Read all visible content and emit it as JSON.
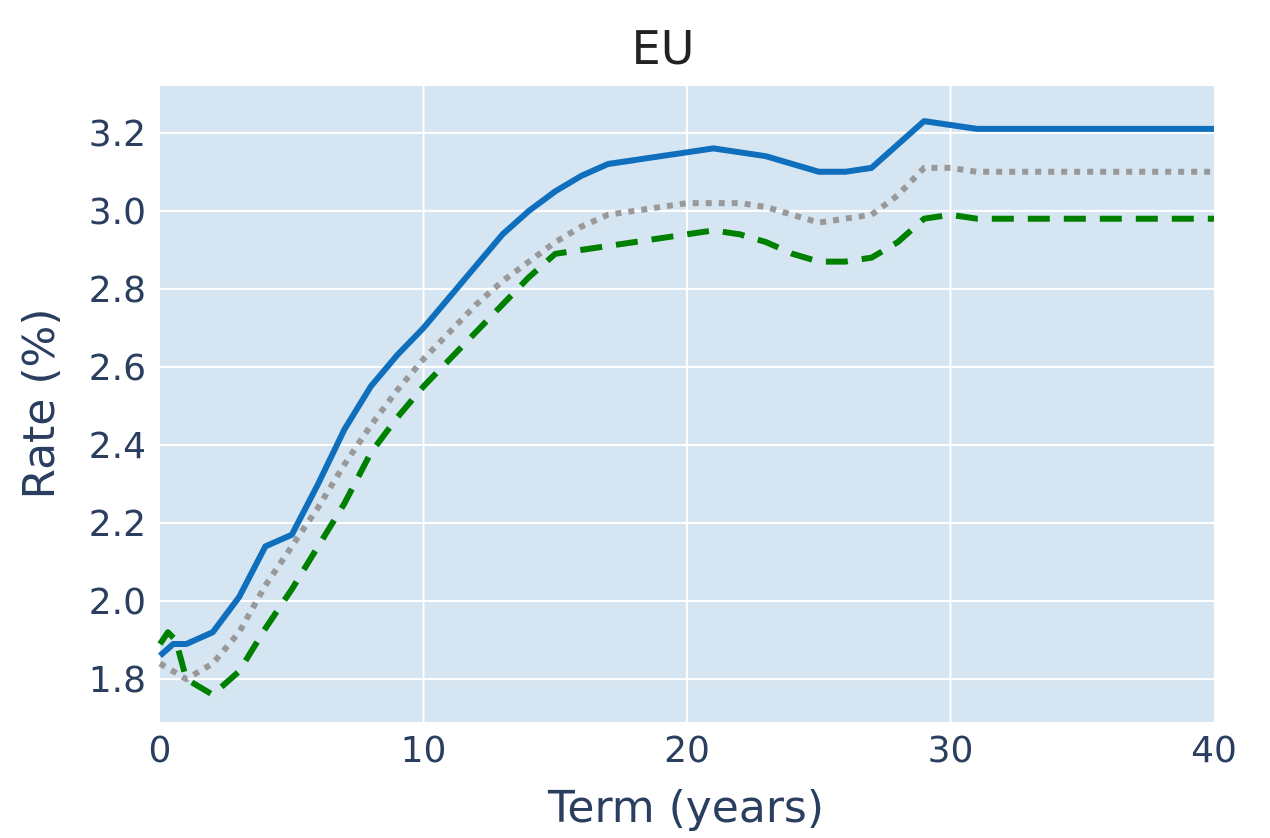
{
  "chart_data": {
    "type": "line",
    "title": "EU",
    "xlabel": "Term (years)",
    "ylabel": "Rate (%)",
    "xlim": [
      0,
      40
    ],
    "ylim": [
      1.69,
      3.32
    ],
    "xticks": [
      0,
      10,
      20,
      30,
      40
    ],
    "yticks": [
      1.8,
      2.0,
      2.2,
      2.4,
      2.6,
      2.8,
      3.0,
      3.2
    ],
    "ytick_labels": [
      "1.8",
      "2.0",
      "2.2",
      "2.4",
      "2.6",
      "2.8",
      "3.0",
      "3.2"
    ],
    "grid": true,
    "legend": "none",
    "background": "#d6e5f2",
    "gridColor": "#ffffff",
    "series": [
      {
        "style": "solid",
        "color": "#0f6fbd",
        "x": [
          0,
          0.5,
          1,
          2,
          3,
          4,
          5,
          6,
          7,
          8,
          9,
          10,
          11,
          12,
          13,
          14,
          15,
          16,
          17,
          18,
          19,
          20,
          21,
          22,
          23,
          24,
          25,
          26,
          27,
          28,
          29,
          30,
          31,
          35,
          40
        ],
        "y": [
          1.86,
          1.89,
          1.89,
          1.92,
          2.01,
          2.14,
          2.17,
          2.3,
          2.44,
          2.55,
          2.63,
          2.7,
          2.78,
          2.86,
          2.94,
          3.0,
          3.05,
          3.09,
          3.12,
          3.13,
          3.14,
          3.15,
          3.16,
          3.15,
          3.14,
          3.12,
          3.1,
          3.1,
          3.11,
          3.17,
          3.23,
          3.22,
          3.21,
          3.21,
          3.21
        ]
      },
      {
        "style": "dotted",
        "color": "#999999",
        "x": [
          0,
          0.5,
          1,
          2,
          3,
          4,
          5,
          6,
          7,
          8,
          9,
          10,
          11,
          12,
          13,
          14,
          15,
          16,
          17,
          18,
          19,
          20,
          21,
          22,
          23,
          24,
          25,
          26,
          27,
          28,
          29,
          30,
          31,
          35,
          40
        ],
        "y": [
          1.84,
          1.82,
          1.8,
          1.84,
          1.92,
          2.04,
          2.14,
          2.24,
          2.35,
          2.45,
          2.54,
          2.62,
          2.69,
          2.76,
          2.82,
          2.87,
          2.92,
          2.96,
          2.99,
          3.0,
          3.01,
          3.02,
          3.02,
          3.02,
          3.01,
          2.99,
          2.97,
          2.98,
          2.99,
          3.04,
          3.11,
          3.11,
          3.1,
          3.1,
          3.1
        ]
      },
      {
        "style": "dashed",
        "color": "#008000",
        "x": [
          0,
          0.3,
          0.6,
          1,
          1.5,
          2,
          3,
          4,
          5,
          6,
          7,
          8,
          9,
          10,
          11,
          12,
          13,
          14,
          15,
          16,
          17,
          18,
          19,
          20,
          21,
          22,
          23,
          24,
          25,
          26,
          27,
          28,
          29,
          30,
          31,
          35,
          40
        ],
        "y": [
          1.89,
          1.92,
          1.9,
          1.8,
          1.78,
          1.76,
          1.82,
          1.93,
          2.03,
          2.14,
          2.25,
          2.38,
          2.47,
          2.55,
          2.62,
          2.69,
          2.76,
          2.83,
          2.89,
          2.9,
          2.91,
          2.92,
          2.93,
          2.94,
          2.95,
          2.94,
          2.92,
          2.89,
          2.87,
          2.87,
          2.88,
          2.92,
          2.98,
          2.99,
          2.98,
          2.98,
          2.98
        ]
      }
    ]
  }
}
